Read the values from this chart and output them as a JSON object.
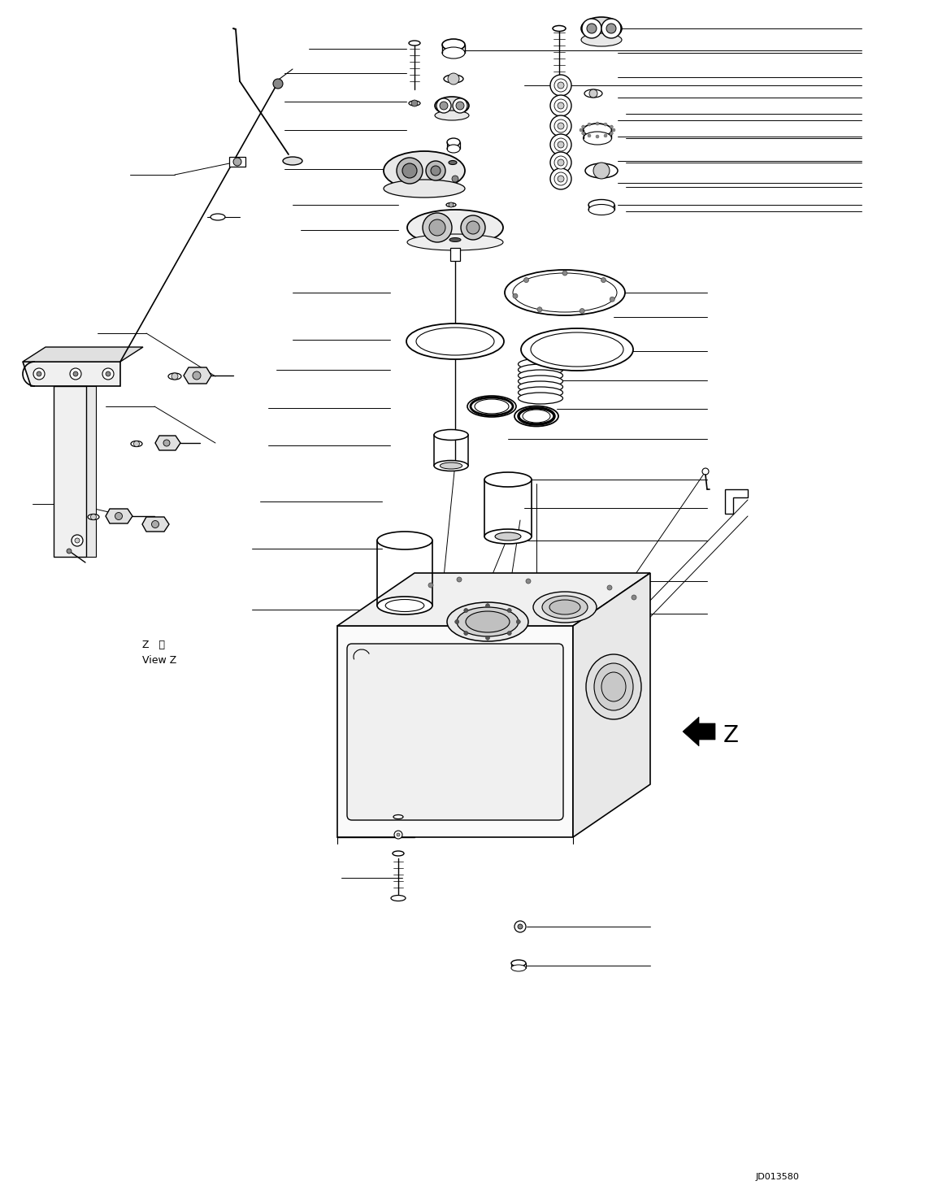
{
  "bg_color": "#ffffff",
  "line_color": "#000000",
  "title_code": "JD013580",
  "view_label_1": "Z   視",
  "view_label_2": "View Z",
  "z_label": "Z",
  "figsize": [
    11.43,
    14.69
  ],
  "dpi": 100
}
